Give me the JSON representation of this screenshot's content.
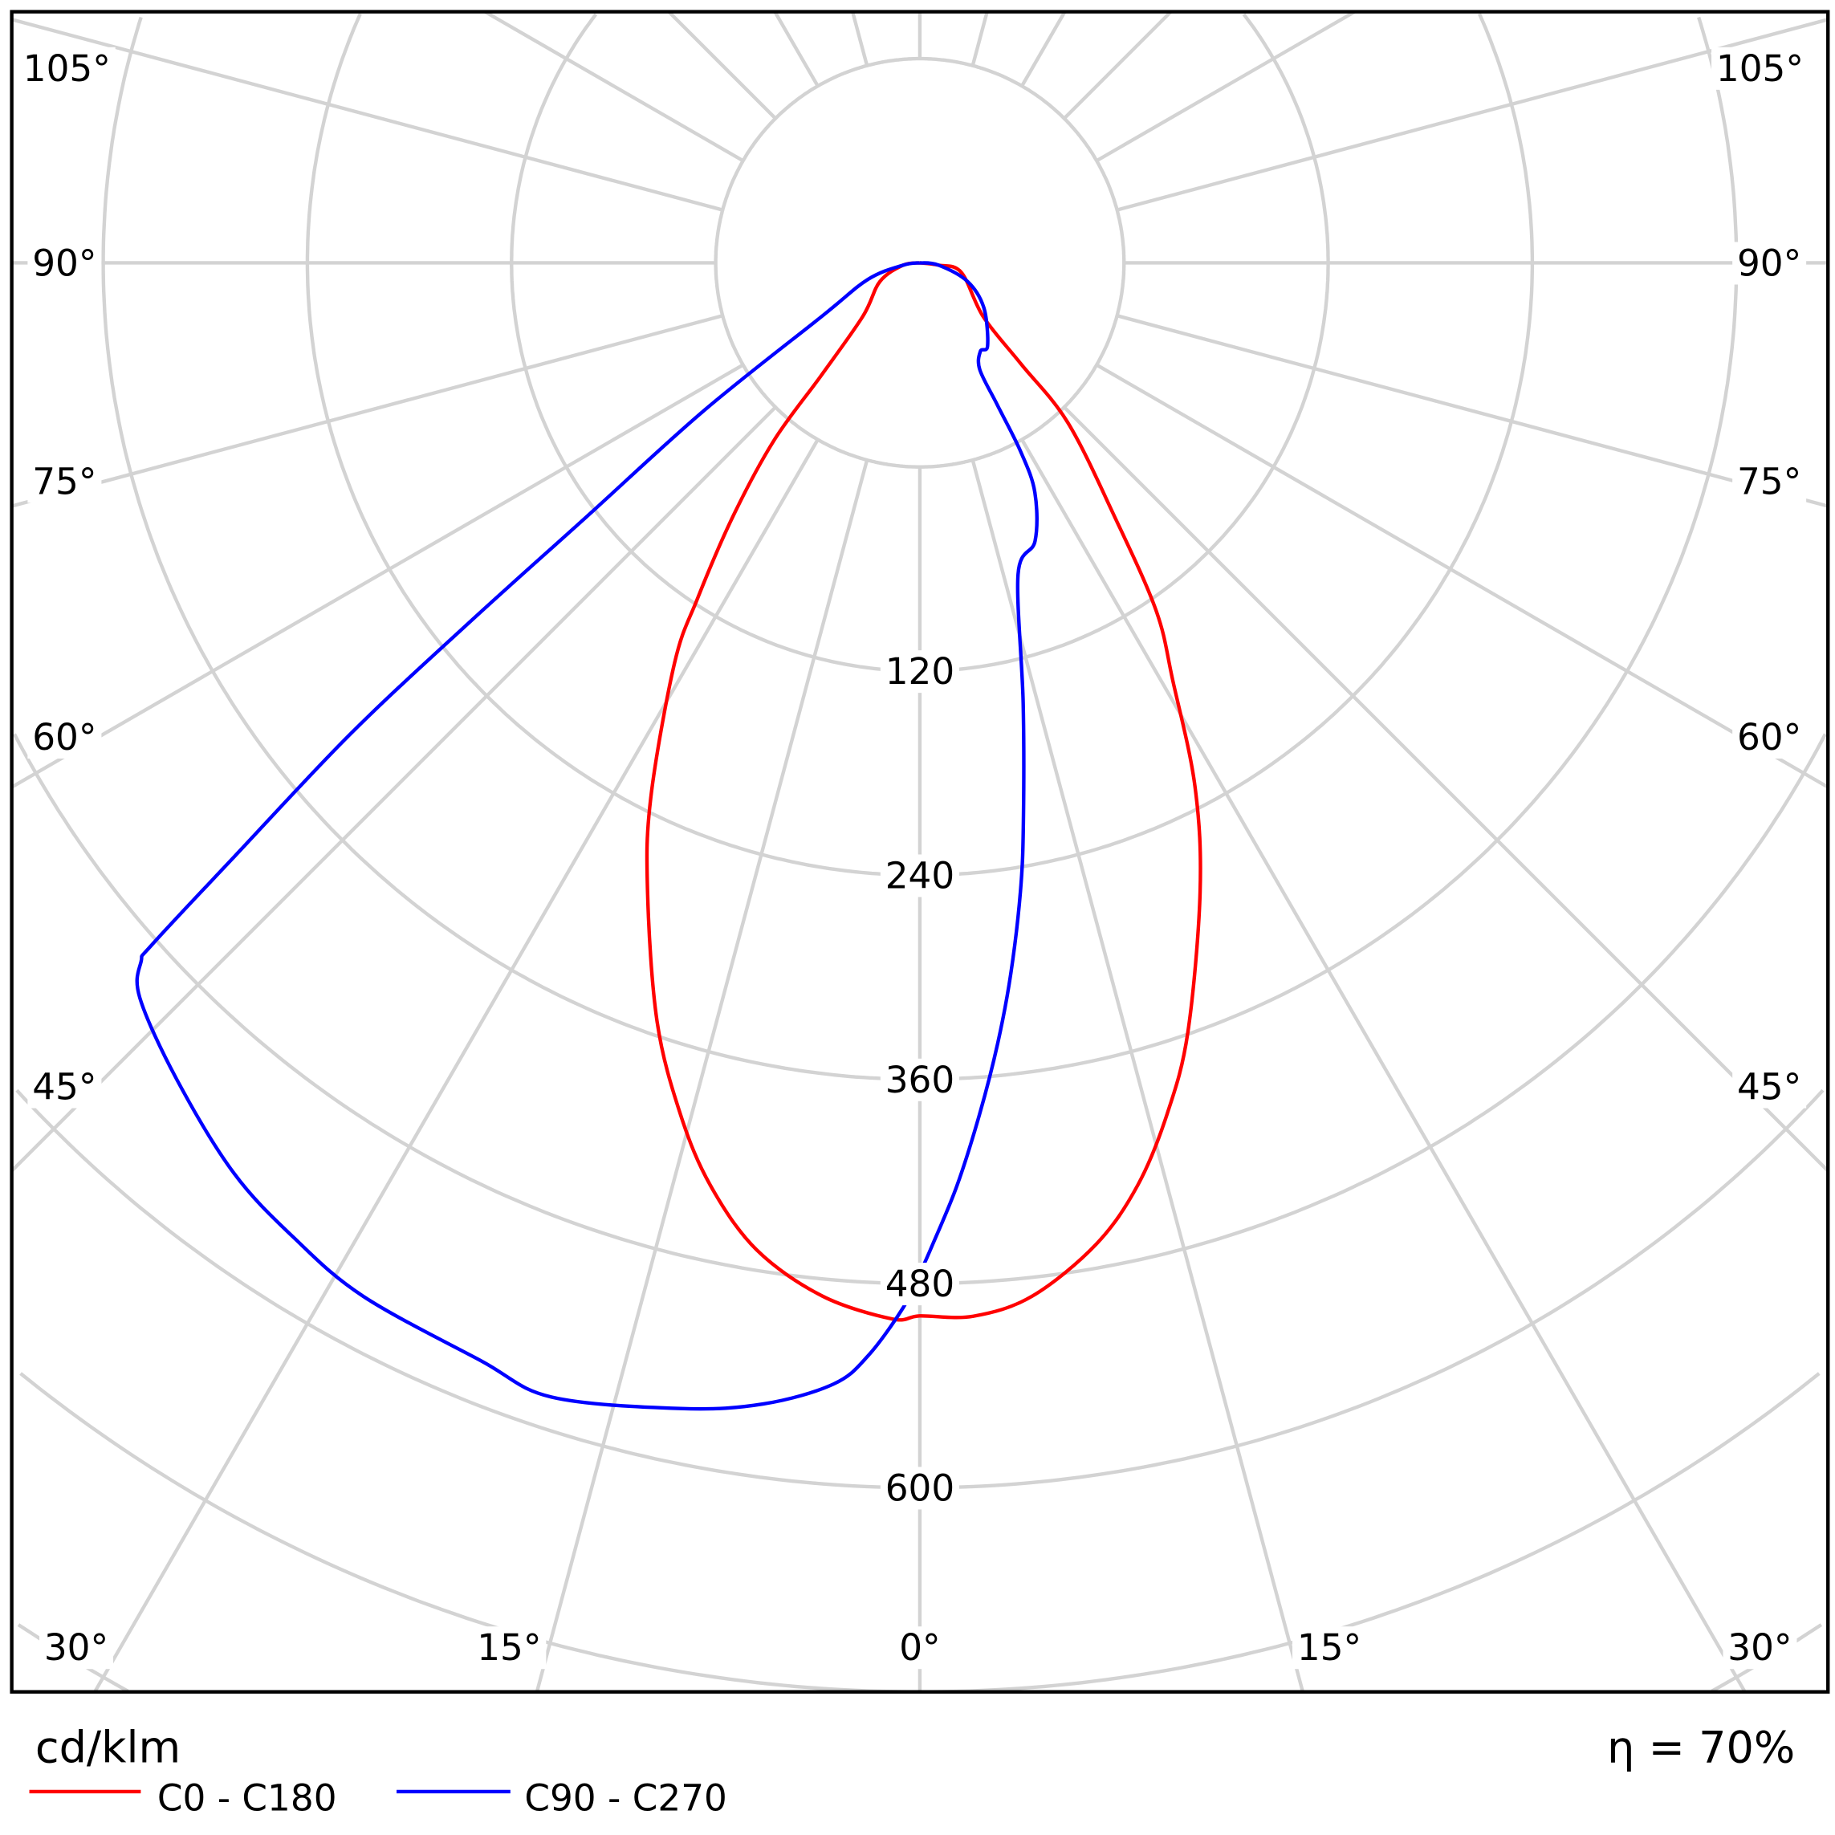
{
  "chart_data": {
    "type": "polar",
    "unit_label": "cd/klm",
    "efficiency_label": "η = 70%",
    "radial_ticks": [
      120,
      240,
      360,
      480,
      600
    ],
    "radial_grid_step": 120,
    "radial_range": [
      0,
      840
    ],
    "angle_labels_left": [
      "105°",
      "90°",
      "75°",
      "60°",
      "45°",
      "30°",
      "15°",
      "0°"
    ],
    "angle_labels_right": [
      "105°",
      "90°",
      "75°",
      "60°",
      "45°",
      "30°",
      "15°"
    ],
    "angle_grid_step_deg": 15,
    "grid": true,
    "legend_placement": "bottom-left",
    "series": [
      {
        "name": "C0 - C180",
        "color": "#ff0000",
        "points": [
          [
            -82,
            -110
          ],
          [
            -64.8,
            -94
          ],
          [
            -46.8,
            -74
          ],
          [
            -41.2,
            -32
          ],
          [
            -39.4,
            15
          ],
          [
            -36.4,
            65
          ],
          [
            -33.5,
            117
          ],
          [
            -31.5,
            156
          ],
          [
            -26.7,
            232
          ],
          [
            -23.4,
            283
          ],
          [
            -19.1,
            352
          ],
          [
            -15.7,
            400
          ],
          [
            -12.8,
            436
          ],
          [
            -9.4,
            468
          ],
          [
            -5.4,
            490
          ],
          [
            -1.5,
            501
          ],
          [
            0,
            499
          ],
          [
            2.9,
            500
          ],
          [
            6.2,
            491
          ],
          [
            10.2,
            466
          ],
          [
            13.3,
            437
          ],
          [
            16.2,
            401
          ],
          [
            19.2,
            359
          ],
          [
            24.0,
            285
          ],
          [
            27.7,
            228
          ],
          [
            31.2,
            167
          ],
          [
            34.2,
            127
          ],
          [
            37.5,
            68
          ],
          [
            42.8,
            8
          ],
          [
            45,
            -36
          ],
          [
            49.6,
            -71
          ],
          [
            77,
            -95
          ],
          [
            83,
            -109
          ]
        ]
      },
      {
        "name": "C90 - C270",
        "color": "#0000ff",
        "points": [
          [
            -82,
            -110
          ],
          [
            -72.3,
            -88
          ],
          [
            -61.3,
            -54
          ],
          [
            -55.6,
            34
          ],
          [
            -52.7,
            126
          ],
          [
            -51.4,
            219
          ],
          [
            -50.4,
            314
          ],
          [
            -49.1,
            413
          ],
          [
            -48.4,
            483
          ],
          [
            -48.1,
            495
          ],
          [
            -46.7,
            510
          ],
          [
            -42.3,
            529
          ],
          [
            -37.0,
            550
          ],
          [
            -32.7,
            561
          ],
          [
            -28.3,
            570
          ],
          [
            -21.8,
            575
          ],
          [
            -18.0,
            581
          ],
          [
            -11.8,
            568
          ],
          [
            -7.8,
            557
          ],
          [
            -4.4,
            541
          ],
          [
            -2.7,
            523
          ],
          [
            -0.9,
            494
          ],
          [
            0,
            474
          ],
          [
            0.75,
            457
          ],
          [
            2.3,
            423
          ],
          [
            4.0,
            382
          ],
          [
            5.7,
            341
          ],
          [
            7.3,
            301
          ],
          [
            9.1,
            254
          ],
          [
            10.5,
            214
          ],
          [
            13.2,
            146
          ],
          [
            17.5,
            72
          ],
          [
            22.5,
            57
          ],
          [
            26.6,
            31
          ],
          [
            28.1,
            6
          ],
          [
            28.6,
            -25
          ],
          [
            29.3,
            -48
          ],
          [
            34.4,
            -57
          ],
          [
            39.2,
            -57
          ],
          [
            54.9,
            -74
          ],
          [
            68.7,
            -90
          ],
          [
            83,
            -109
          ]
        ]
      }
    ]
  }
}
